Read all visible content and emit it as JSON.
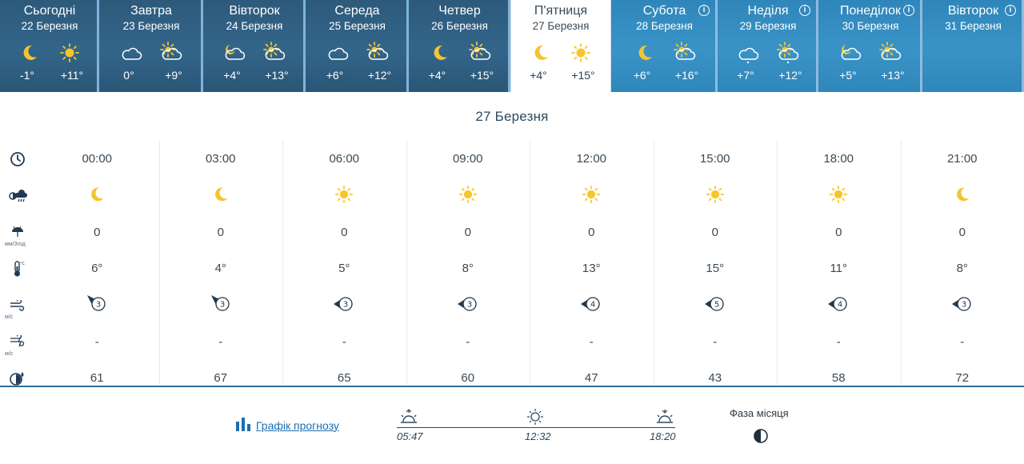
{
  "days": [
    {
      "name": "Сьогодні",
      "date": "22 Березня",
      "night_icon": "moon-icon",
      "day_icon": "sun-icon",
      "t_min": "-1°",
      "t_max": "+11°",
      "state": "past",
      "info": false
    },
    {
      "name": "Завтра",
      "date": "23 Березня",
      "night_icon": "cloud-icon",
      "day_icon": "partly-cloudy-icon",
      "t_min": "0°",
      "t_max": "+9°",
      "state": "past",
      "info": false
    },
    {
      "name": "Вівторок",
      "date": "24 Березня",
      "night_icon": "partly-cloudy-night-icon",
      "day_icon": "partly-cloudy-icon",
      "t_min": "+4°",
      "t_max": "+13°",
      "state": "past",
      "info": false
    },
    {
      "name": "Середа",
      "date": "25 Березня",
      "night_icon": "cloud-icon",
      "day_icon": "partly-cloudy-icon",
      "t_min": "+6°",
      "t_max": "+12°",
      "state": "past",
      "info": false
    },
    {
      "name": "Четвер",
      "date": "26 Березня",
      "night_icon": "moon-icon",
      "day_icon": "partly-cloudy-icon",
      "t_min": "+4°",
      "t_max": "+15°",
      "state": "past",
      "info": false
    },
    {
      "name": "П'ятниця",
      "date": "27 Березня",
      "night_icon": "moon-icon",
      "day_icon": "sun-icon",
      "t_min": "+4°",
      "t_max": "+15°",
      "state": "active",
      "info": false
    },
    {
      "name": "Субота",
      "date": "28 Березня",
      "night_icon": "moon-icon",
      "day_icon": "partly-cloudy-icon",
      "t_min": "+6°",
      "t_max": "+16°",
      "state": "future",
      "info": true
    },
    {
      "name": "Неділя",
      "date": "29 Березня",
      "night_icon": "cloud-drizzle-icon",
      "day_icon": "partly-cloudy-drizzle-icon",
      "t_min": "+7°",
      "t_max": "+12°",
      "state": "future",
      "info": true
    },
    {
      "name": "Понеділок",
      "date": "30 Березня",
      "night_icon": "partly-cloudy-night-icon",
      "day_icon": "partly-cloudy-icon",
      "t_min": "+5°",
      "t_max": "+13°",
      "state": "future",
      "info": true
    },
    {
      "name": "Вівторок",
      "date": "31 Березня",
      "night_icon": "",
      "day_icon": "",
      "t_min": "",
      "t_max": "",
      "state": "future",
      "info": true
    }
  ],
  "selected_title": "27 Березня",
  "row_units": {
    "precip": "мм/3год",
    "wind": "м/с",
    "gust": "м/с"
  },
  "hours": [
    {
      "time": "00:00",
      "icon": "moon-icon",
      "precip": "0",
      "temp": "6°",
      "wind": "3",
      "wind_dir": "NW",
      "gust": "-",
      "humidity": "61"
    },
    {
      "time": "03:00",
      "icon": "moon-icon",
      "precip": "0",
      "temp": "4°",
      "wind": "3",
      "wind_dir": "NW",
      "gust": "-",
      "humidity": "67"
    },
    {
      "time": "06:00",
      "icon": "sun-icon",
      "precip": "0",
      "temp": "5°",
      "wind": "3",
      "wind_dir": "W",
      "gust": "-",
      "humidity": "65"
    },
    {
      "time": "09:00",
      "icon": "sun-icon",
      "precip": "0",
      "temp": "8°",
      "wind": "3",
      "wind_dir": "W",
      "gust": "-",
      "humidity": "60"
    },
    {
      "time": "12:00",
      "icon": "sun-icon",
      "precip": "0",
      "temp": "13°",
      "wind": "4",
      "wind_dir": "W",
      "gust": "-",
      "humidity": "47"
    },
    {
      "time": "15:00",
      "icon": "sun-icon",
      "precip": "0",
      "temp": "15°",
      "wind": "5",
      "wind_dir": "W",
      "gust": "-",
      "humidity": "43"
    },
    {
      "time": "18:00",
      "icon": "sun-icon",
      "precip": "0",
      "temp": "11°",
      "wind": "4",
      "wind_dir": "W",
      "gust": "-",
      "humidity": "58"
    },
    {
      "time": "21:00",
      "icon": "moon-icon",
      "precip": "0",
      "temp": "8°",
      "wind": "3",
      "wind_dir": "W",
      "gust": "-",
      "humidity": "72"
    }
  ],
  "graph_link": "Графік прогнозу",
  "sun": {
    "sunrise": "05:47",
    "noon": "12:32",
    "sunset": "18:20"
  },
  "moon_label": "Фаза місяця",
  "moon_icon": "half-moon-icon",
  "colors": {
    "past_tab": "#33658a",
    "future_tab": "#3a93c6",
    "sun": "#f6c52a",
    "moon": "#f4c430",
    "link": "#1c6fb0"
  }
}
